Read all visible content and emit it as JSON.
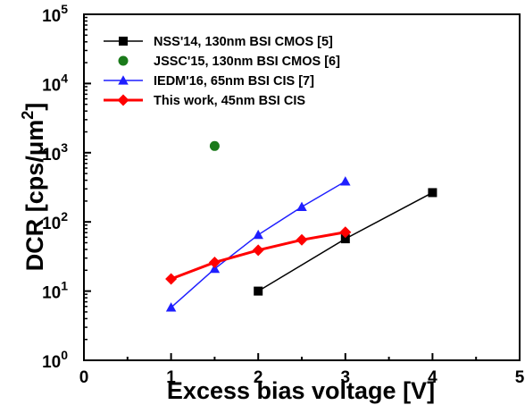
{
  "chart_data": {
    "type": "line",
    "title": "",
    "xlabel": "Excess bias voltage [V]",
    "ylabel_main": "DCR [cps/μm",
    "ylabel_sup": "2",
    "ylabel_end": "]",
    "xlim": [
      0,
      5
    ],
    "ylim": [
      1,
      100000
    ],
    "yscale": "log",
    "grid": false,
    "legend_position": "top-left",
    "x_ticks": [
      0,
      1,
      2,
      3,
      4,
      5
    ],
    "x_tick_labels": [
      "0",
      "1",
      "2",
      "3",
      "4",
      "5"
    ],
    "y_ticks": [
      1,
      10,
      100,
      1000,
      10000,
      100000
    ],
    "y_tick_bases": [
      "10",
      "10",
      "10",
      "10",
      "10",
      "10"
    ],
    "y_tick_exps": [
      "0",
      "1",
      "2",
      "3",
      "4",
      "5"
    ],
    "series": [
      {
        "name": "NSS'14, 130nm BSI CMOS [5]",
        "color": "#000000",
        "marker": "square",
        "x": [
          2,
          3,
          4
        ],
        "y": [
          10,
          57,
          265
        ]
      },
      {
        "name": "JSSC'15, 130nm BSI CMOS [6]",
        "color": "#1a7a1a",
        "marker": "circle",
        "x": [
          1.5
        ],
        "y": [
          1250
        ]
      },
      {
        "name": "IEDM'16, 65nm BSI CIS [7]",
        "color": "#1f1fff",
        "marker": "triangle",
        "x": [
          1,
          1.5,
          2,
          2.5,
          3
        ],
        "y": [
          5.8,
          21,
          65,
          165,
          385
        ]
      },
      {
        "name": "This work, 45nm BSI CIS",
        "color": "#ff0000",
        "marker": "diamond",
        "x": [
          1,
          1.5,
          2,
          2.5,
          3
        ],
        "y": [
          15,
          26,
          39,
          55,
          71
        ]
      }
    ]
  }
}
